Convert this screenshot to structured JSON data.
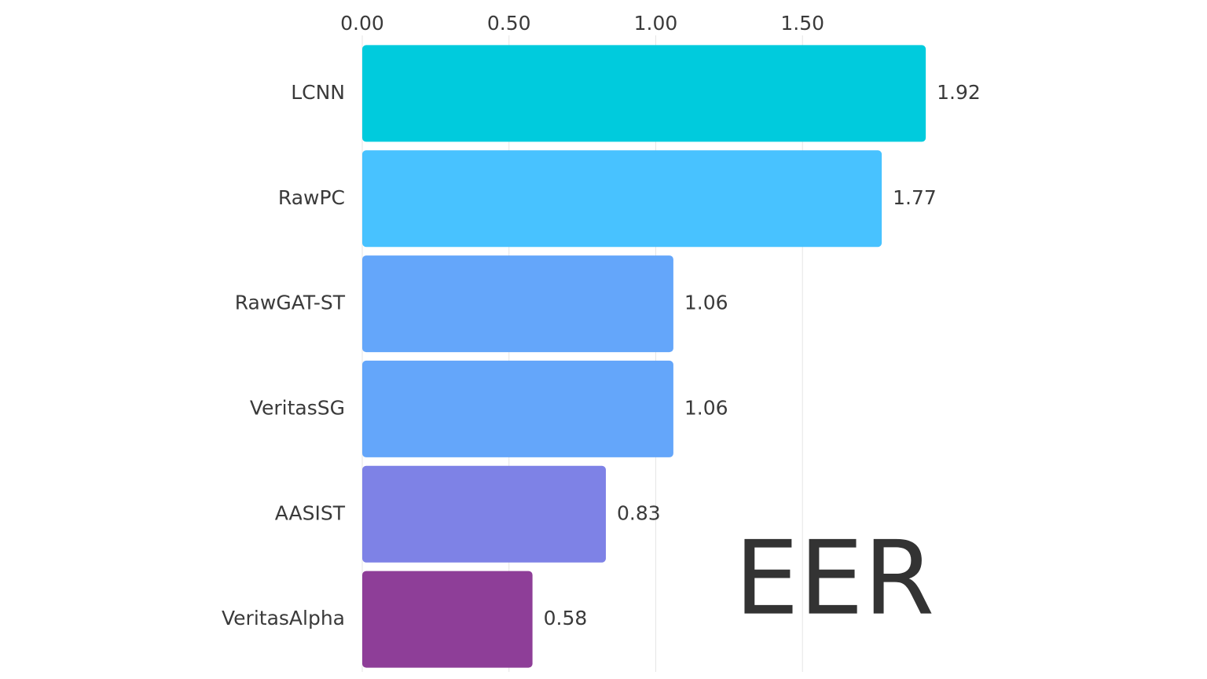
{
  "chart_data": {
    "type": "bar",
    "orientation": "horizontal",
    "title": "EER",
    "categories": [
      "LCNN",
      "RawPC",
      "RawGAT-ST",
      "VeritasSG",
      "AASIST",
      "VeritasAlpha"
    ],
    "values": [
      1.92,
      1.77,
      1.06,
      1.06,
      0.83,
      0.58
    ],
    "colors": [
      "#00cbdd",
      "#48c2ff",
      "#64a6fa",
      "#64a6fa",
      "#7e82e6",
      "#8e3e98"
    ],
    "xlim": [
      0,
      2
    ],
    "xticks": [
      {
        "value": 0,
        "label": "0.00"
      },
      {
        "value": 0.5,
        "label": "0.50"
      },
      {
        "value": 1,
        "label": "1.00"
      },
      {
        "value": 1.5,
        "label": "1.50"
      }
    ],
    "grid": true
  }
}
